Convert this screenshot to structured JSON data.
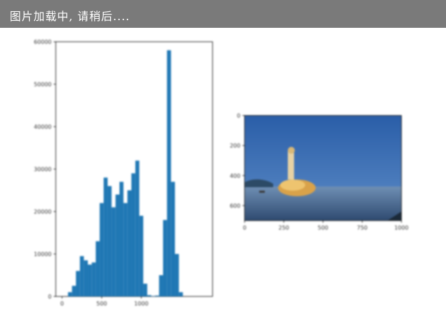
{
  "banner": {
    "text": "图片加载中, 请稍后...."
  },
  "colors": {
    "banner_bg": "#7a7a7a",
    "bar": "#1f77b4",
    "sky": "#2f68b0",
    "sea": "#6f8fb4"
  },
  "chart_data": [
    {
      "type": "bar",
      "title": "",
      "xlabel": "",
      "ylabel": "",
      "xlim": [
        -80,
        1900
      ],
      "ylim": [
        0,
        60000
      ],
      "xticks": [
        0,
        500,
        1000
      ],
      "yticks": [
        0,
        10000,
        20000,
        30000,
        40000,
        50000,
        60000
      ],
      "x": [
        50,
        100,
        150,
        200,
        250,
        300,
        350,
        400,
        450,
        500,
        550,
        600,
        650,
        700,
        750,
        800,
        850,
        900,
        950,
        1000,
        1050,
        1100,
        1150,
        1200,
        1250,
        1300,
        1350,
        1400,
        1450,
        1500,
        1550,
        1600,
        1650,
        1700,
        1750
      ],
      "values": [
        0,
        1000,
        2500,
        6000,
        9500,
        8500,
        7500,
        8000,
        13000,
        22000,
        28000,
        26000,
        21000,
        24000,
        27000,
        22000,
        25000,
        29000,
        32000,
        19000,
        3000,
        300,
        100,
        200,
        5000,
        18000,
        58000,
        27000,
        10000,
        1000,
        0,
        0,
        0,
        0,
        0
      ]
    },
    {
      "type": "image",
      "xticks": [
        0,
        250,
        500,
        750,
        1000
      ],
      "yticks": [
        0,
        200,
        400,
        600
      ],
      "xlim": [
        0,
        1000
      ],
      "ylim": [
        0,
        700
      ]
    }
  ]
}
